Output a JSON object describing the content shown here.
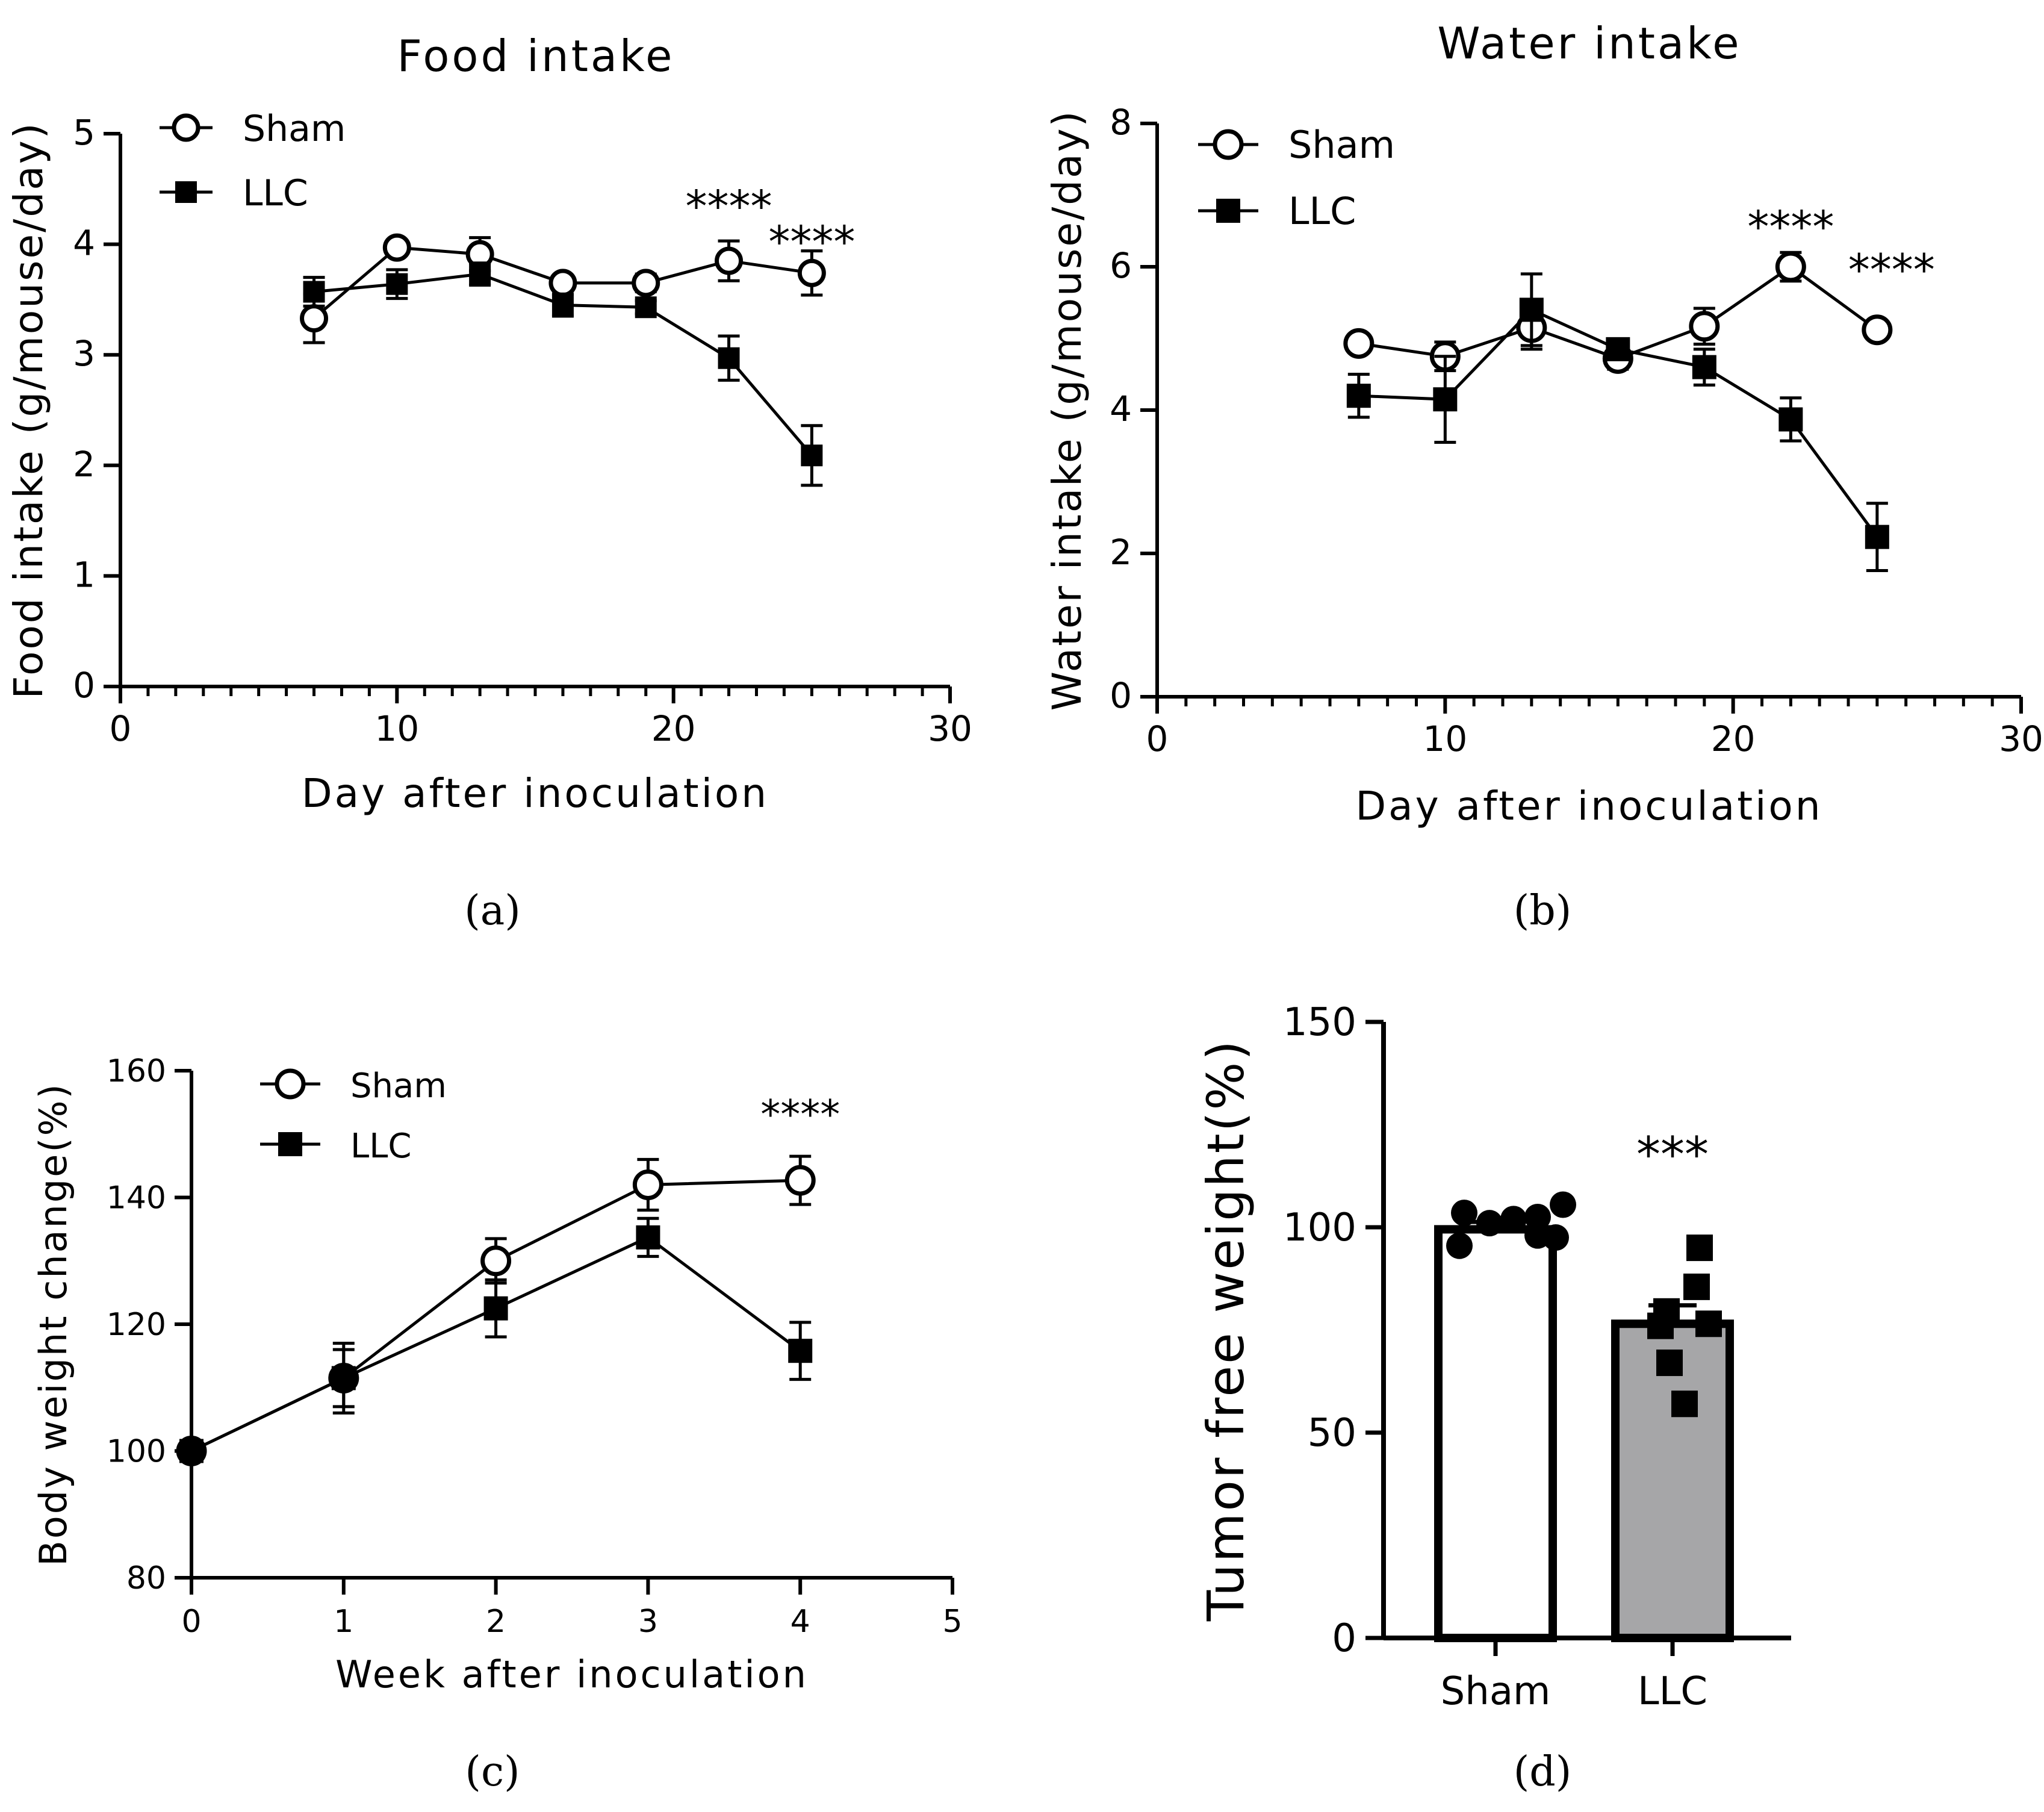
{
  "chart_data": [
    {
      "panel": "(a)",
      "type": "line",
      "title": "Food intake",
      "xlabel": "Day after inoculation",
      "ylabel": "Food intake (g/mouse/day)",
      "xlim": [
        0,
        30
      ],
      "ylim": [
        0,
        5
      ],
      "xticks": [
        0,
        10,
        20,
        30
      ],
      "yticks": [
        0,
        1,
        2,
        3,
        4,
        5
      ],
      "x_minor_step": 1,
      "legend": "top-left",
      "series": [
        {
          "name": "Sham",
          "marker": "open-circle",
          "x": [
            7,
            10,
            13,
            16,
            19,
            22,
            25
          ],
          "y": [
            3.33,
            3.97,
            3.91,
            3.65,
            3.65,
            3.85,
            3.74
          ],
          "err": [
            0.22,
            0.05,
            0.15,
            0.07,
            0.08,
            0.18,
            0.2
          ]
        },
        {
          "name": "LLC",
          "marker": "filled-square",
          "x": [
            7,
            10,
            13,
            16,
            19,
            22,
            25
          ],
          "y": [
            3.57,
            3.64,
            3.73,
            3.45,
            3.43,
            2.97,
            2.09
          ],
          "err": [
            0.13,
            0.13,
            0.1,
            0.1,
            0.06,
            0.2,
            0.27
          ]
        }
      ],
      "annotations": [
        {
          "text": "****",
          "x": 22,
          "y": 4.37
        },
        {
          "text": "****",
          "x": 25,
          "y": 4.05
        }
      ]
    },
    {
      "panel": "(b)",
      "type": "line",
      "title": "Water intake",
      "xlabel": "Day after inoculation",
      "ylabel": "Water intake (g/mouse/day)",
      "xlim": [
        0,
        30
      ],
      "ylim": [
        0,
        8
      ],
      "xticks": [
        0,
        10,
        20,
        30
      ],
      "yticks": [
        0,
        2,
        4,
        6,
        8
      ],
      "x_minor_step": 1,
      "legend": "top-left",
      "series": [
        {
          "name": "Sham",
          "marker": "open-circle",
          "x": [
            7,
            10,
            13,
            16,
            19,
            22,
            25
          ],
          "y": [
            4.93,
            4.75,
            5.15,
            4.72,
            5.17,
            6.0,
            5.12
          ],
          "err": [
            0.05,
            0.2,
            0.3,
            0.15,
            0.25,
            0.2,
            0.08
          ]
        },
        {
          "name": "LLC",
          "marker": "filled-square",
          "x": [
            7,
            10,
            13,
            16,
            19,
            22,
            25
          ],
          "y": [
            4.2,
            4.15,
            5.4,
            4.85,
            4.6,
            3.87,
            2.23
          ],
          "err": [
            0.3,
            0.6,
            0.5,
            0.1,
            0.25,
            0.3,
            0.47
          ]
        }
      ],
      "annotations": [
        {
          "text": "****",
          "x": 22,
          "y": 6.6
        },
        {
          "text": "****",
          "x": 25.5,
          "y": 6.0
        }
      ]
    },
    {
      "panel": "(c)",
      "type": "line",
      "title": "",
      "xlabel": "Week after inoculation",
      "ylabel": "Body  weight change(%)",
      "xlim": [
        0,
        5
      ],
      "ylim": [
        80,
        160
      ],
      "xticks": [
        0,
        1,
        2,
        3,
        4,
        5
      ],
      "yticks": [
        80,
        100,
        120,
        140,
        160
      ],
      "legend": "top-left",
      "series": [
        {
          "name": "Sham",
          "marker": "open-circle",
          "x": [
            0,
            1,
            2,
            3,
            4
          ],
          "y": [
            100,
            111.5,
            130,
            142,
            142.7
          ],
          "err": [
            0,
            5.5,
            3.5,
            4,
            3.8
          ]
        },
        {
          "name": "LLC",
          "marker": "filled-square",
          "x": [
            0,
            1,
            2,
            3,
            4
          ],
          "y": [
            100,
            111.5,
            122.5,
            133.7,
            115.8
          ],
          "err": [
            0,
            4.5,
            4.5,
            3,
            4.5
          ]
        }
      ],
      "annotations": [
        {
          "text": "****",
          "x": 4,
          "y": 153.8
        }
      ]
    },
    {
      "panel": "(d)",
      "type": "bar",
      "title": "",
      "xlabel": "",
      "ylabel": "Tumor free weight(%)",
      "ylim": [
        0,
        150
      ],
      "yticks": [
        0,
        50,
        100,
        150
      ],
      "categories": [
        "Sham",
        "LLC"
      ],
      "values": [
        99.5,
        76.5
      ],
      "errors": [
        1.8,
        4.5
      ],
      "bar_colors": [
        "#ffffff",
        "#a6a6a8"
      ],
      "points": [
        {
          "group": "Sham",
          "marker": "filled-circle",
          "values": [
            103.5,
            101,
            102,
            102.5,
            105.5,
            95.5,
            98,
            97.5
          ]
        },
        {
          "group": "LLC",
          "marker": "filled-square",
          "values": [
            95,
            85.5,
            79.5,
            76,
            76.5,
            67,
            57
          ]
        }
      ],
      "annotations": [
        {
          "text": "***",
          "category": "LLC",
          "y": 118
        }
      ]
    }
  ]
}
